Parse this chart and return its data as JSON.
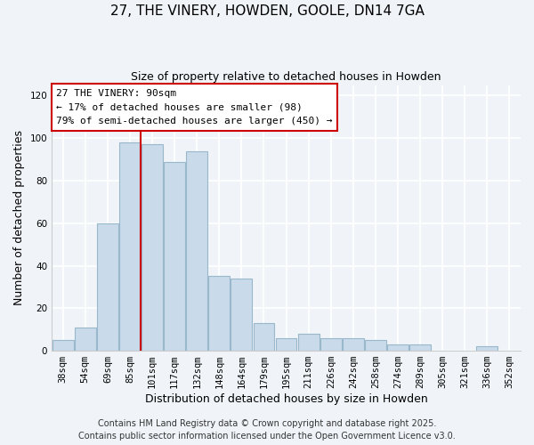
{
  "title": "27, THE VINERY, HOWDEN, GOOLE, DN14 7GA",
  "subtitle": "Size of property relative to detached houses in Howden",
  "xlabel": "Distribution of detached houses by size in Howden",
  "ylabel": "Number of detached properties",
  "bar_color": "#c9daea",
  "bar_edge_color": "#9ab8cc",
  "categories": [
    "38sqm",
    "54sqm",
    "69sqm",
    "85sqm",
    "101sqm",
    "117sqm",
    "132sqm",
    "148sqm",
    "164sqm",
    "179sqm",
    "195sqm",
    "211sqm",
    "226sqm",
    "242sqm",
    "258sqm",
    "274sqm",
    "289sqm",
    "305sqm",
    "321sqm",
    "336sqm",
    "352sqm"
  ],
  "values": [
    5,
    11,
    60,
    98,
    97,
    89,
    94,
    35,
    34,
    13,
    6,
    8,
    6,
    6,
    5,
    3,
    3,
    0,
    0,
    2,
    0
  ],
  "ylim": [
    0,
    125
  ],
  "yticks": [
    0,
    20,
    40,
    60,
    80,
    100,
    120
  ],
  "vline_x_index": 3,
  "vline_color": "#cc0000",
  "annotation_title": "27 THE VINERY: 90sqm",
  "annotation_line1": "← 17% of detached houses are smaller (98)",
  "annotation_line2": "79% of semi-detached houses are larger (450) →",
  "annotation_box_color": "#ffffff",
  "annotation_box_edge": "#cc0000",
  "footer1": "Contains HM Land Registry data © Crown copyright and database right 2025.",
  "footer2": "Contains public sector information licensed under the Open Government Licence v3.0.",
  "bg_color": "#f0f4f8",
  "grid_color": "#ffffff",
  "title_fontsize": 11,
  "subtitle_fontsize": 9,
  "label_fontsize": 9,
  "tick_fontsize": 7.5,
  "footer_fontsize": 7
}
